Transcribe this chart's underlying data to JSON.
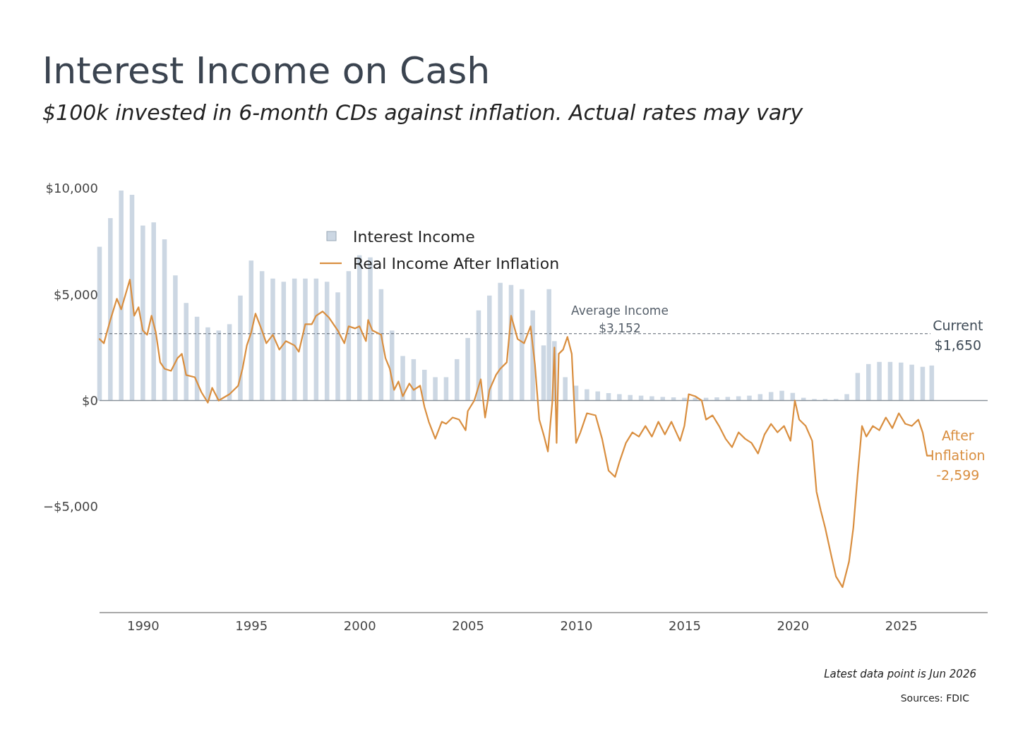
{
  "chart_data": {
    "type": "bar",
    "title": "Interest Income on Cash",
    "subtitle": "$100k invested in 6-month CDs against inflation. Actual rates may vary",
    "xlim": [
      1988,
      2029
    ],
    "xticks": [
      1990,
      1995,
      2000,
      2005,
      2010,
      2015,
      2020,
      2025
    ],
    "ylim": [
      -10000,
      10000
    ],
    "yticks": [
      {
        "value": 10000,
        "label": "$10,000"
      },
      {
        "value": 5000,
        "label": "$5,000"
      },
      {
        "value": 0,
        "label": "$0"
      },
      {
        "value": -5000,
        "label": "−$5,000"
      }
    ],
    "grid": false,
    "legend": "top left",
    "ref_lines": [
      {
        "axis": "y",
        "value": 0,
        "color": "#8a929b",
        "line_style": "solid"
      },
      {
        "axis": "y",
        "value": 3152,
        "label": "Average Income\n$3,152",
        "color": "#555f6a",
        "line_style": "dashed"
      }
    ],
    "annotations": [
      {
        "text": "Current\n$1,650",
        "x": 2026.42,
        "y": 1650
      },
      {
        "text": "After\nInflation\n-2,599",
        "x": 2026.42,
        "y": -2599
      },
      "Latest data point is Jun 2026",
      "Sources: FDIC"
    ],
    "series": [
      {
        "name": "Interest Income",
        "color": "#ccd7e3",
        "x": [
          1988,
          1988.5,
          1989,
          1989.5,
          1990,
          1990.5,
          1991,
          1991.5,
          1992,
          1992.5,
          1993,
          1993.5,
          1994,
          1994.5,
          1995,
          1995.5,
          1996,
          1996.5,
          1997,
          1997.5,
          1998,
          1998.5,
          1999,
          1999.5,
          2000,
          2000.5,
          2001,
          2001.5,
          2002,
          2002.5,
          2003,
          2003.5,
          2004,
          2004.5,
          2005,
          2005.5,
          2006,
          2006.5,
          2007,
          2007.5,
          2008,
          2008.5,
          2008.75,
          2009,
          2009.5,
          2010,
          2010.5,
          2011,
          2011.5,
          2012,
          2012.5,
          2013,
          2013.5,
          2014,
          2014.5,
          2015,
          2015.5,
          2016,
          2016.5,
          2017,
          2017.5,
          2018,
          2018.5,
          2019,
          2019.5,
          2020,
          2020.5,
          2021,
          2021.5,
          2022,
          2022.5,
          2023,
          2023.5,
          2024,
          2024.5,
          2025,
          2025.5,
          2026,
          2026.42
        ],
        "values": [
          7250,
          8600,
          9900,
          9700,
          8250,
          8400,
          7600,
          5900,
          4600,
          3950,
          3450,
          3300,
          3600,
          4950,
          6600,
          6100,
          5750,
          5600,
          5750,
          5750,
          5750,
          5600,
          5100,
          6100,
          6850,
          6750,
          5250,
          3300,
          2100,
          1950,
          1450,
          1100,
          1100,
          1950,
          2950,
          4250,
          4950,
          5550,
          5450,
          5250,
          4250,
          2600,
          5250,
          2800,
          1100,
          700,
          530,
          430,
          350,
          300,
          260,
          230,
          200,
          170,
          150,
          130,
          130,
          130,
          150,
          170,
          200,
          230,
          300,
          400,
          460,
          360,
          130,
          70,
          70,
          70,
          300,
          1300,
          1720,
          1820,
          1820,
          1790,
          1690,
          1590,
          1650
        ]
      },
      {
        "name": "Real Income After Inflation",
        "type": "line",
        "color": "#d98e3f",
        "x": [
          1988,
          1988.2,
          1988.5,
          1988.8,
          1989,
          1989.2,
          1989.4,
          1989.6,
          1989.8,
          1990,
          1990.2,
          1990.4,
          1990.6,
          1990.8,
          1991,
          1991.3,
          1991.6,
          1991.8,
          1992,
          1992.4,
          1992.7,
          1993,
          1993.2,
          1993.5,
          1994,
          1994.4,
          1994.6,
          1994.8,
          1995,
          1995.2,
          1995.5,
          1995.7,
          1996,
          1996.3,
          1996.6,
          1997,
          1997.2,
          1997.5,
          1997.8,
          1998,
          1998.3,
          1998.6,
          1999,
          1999.3,
          1999.5,
          1999.8,
          2000,
          2000.3,
          2000.4,
          2000.6,
          2001,
          2001.2,
          2001.4,
          2001.6,
          2001.8,
          2002,
          2002.3,
          2002.5,
          2002.8,
          2003,
          2003.2,
          2003.5,
          2003.8,
          2004,
          2004.3,
          2004.6,
          2004.9,
          2005,
          2005.3,
          2005.6,
          2005.8,
          2006,
          2006.3,
          2006.5,
          2006.8,
          2007,
          2007.3,
          2007.6,
          2007.9,
          2008.1,
          2008.3,
          2008.5,
          2008.7,
          2008.9,
          2009,
          2009.1,
          2009.2,
          2009.4,
          2009.6,
          2009.8,
          2010,
          2010.2,
          2010.5,
          2010.9,
          2011.2,
          2011.5,
          2011.8,
          2012,
          2012.3,
          2012.6,
          2012.9,
          2013.2,
          2013.5,
          2013.8,
          2014.1,
          2014.4,
          2014.8,
          2015,
          2015.2,
          2015.5,
          2015.8,
          2016,
          2016.3,
          2016.6,
          2016.9,
          2017.2,
          2017.5,
          2017.8,
          2018.1,
          2018.4,
          2018.7,
          2019,
          2019.3,
          2019.6,
          2019.9,
          2020.1,
          2020.3,
          2020.6,
          2020.9,
          2021.1,
          2021.3,
          2021.5,
          2021.8,
          2022,
          2022.3,
          2022.6,
          2022.8,
          2023,
          2023.2,
          2023.4,
          2023.7,
          2024,
          2024.3,
          2024.6,
          2024.9,
          2025.2,
          2025.5,
          2025.8,
          2026,
          2026.2,
          2026.42
        ],
        "values": [
          2900,
          2700,
          3800,
          4800,
          4300,
          5000,
          5700,
          4000,
          4400,
          3300,
          3100,
          4000,
          3200,
          1800,
          1500,
          1400,
          2000,
          2200,
          1200,
          1100,
          400,
          -100,
          600,
          0,
          300,
          700,
          1500,
          2600,
          3200,
          4100,
          3300,
          2700,
          3100,
          2400,
          2800,
          2600,
          2300,
          3600,
          3600,
          4000,
          4200,
          3900,
          3300,
          2700,
          3500,
          3400,
          3500,
          2800,
          3800,
          3300,
          3100,
          2000,
          1500,
          500,
          900,
          200,
          800,
          500,
          700,
          -300,
          -1000,
          -1800,
          -1000,
          -1100,
          -800,
          -900,
          -1400,
          -500,
          0,
          1000,
          -800,
          500,
          1200,
          1500,
          1800,
          4000,
          2900,
          2700,
          3500,
          1700,
          -900,
          -1600,
          -2400,
          -100,
          2500,
          -2000,
          2200,
          2400,
          3000,
          2200,
          -2000,
          -1500,
          -600,
          -700,
          -1800,
          -3300,
          -3600,
          -2900,
          -2000,
          -1500,
          -1700,
          -1200,
          -1700,
          -1000,
          -1600,
          -1000,
          -1900,
          -1200,
          300,
          200,
          0,
          -900,
          -700,
          -1200,
          -1800,
          -2200,
          -1500,
          -1800,
          -2000,
          -2500,
          -1600,
          -1100,
          -1500,
          -1200,
          -1900,
          0,
          -900,
          -1200,
          -1900,
          -4300,
          -5200,
          -6000,
          -7400,
          -8300,
          -8800,
          -7600,
          -6000,
          -3500,
          -1200,
          -1700,
          -1200,
          -1400,
          -800,
          -1300,
          -600,
          -1100,
          -1200,
          -900,
          -1500,
          -2600,
          -2599
        ]
      }
    ]
  }
}
